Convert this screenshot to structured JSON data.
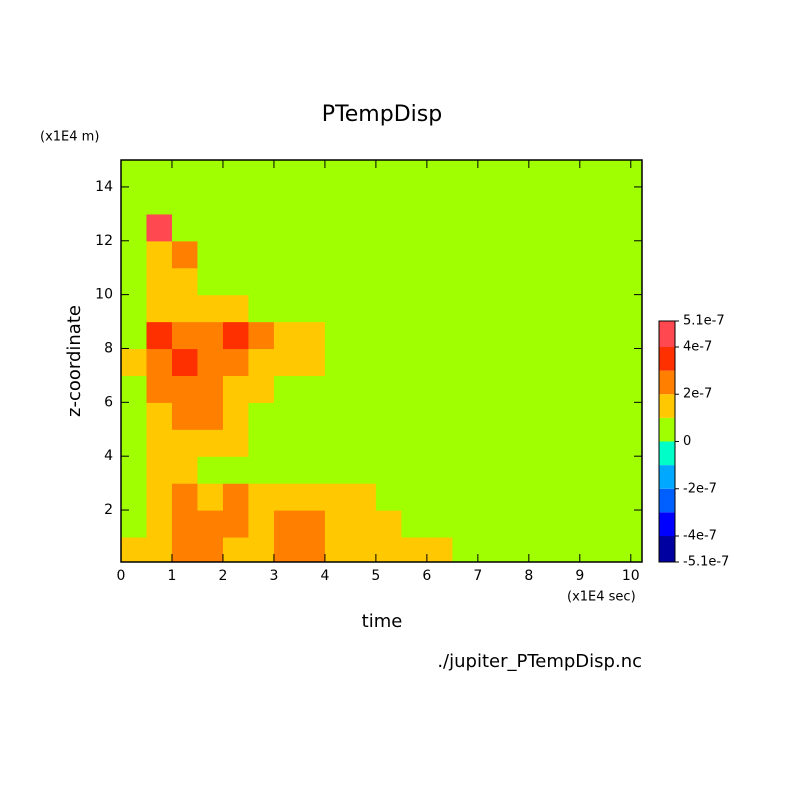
{
  "chart_data": {
    "type": "contour",
    "title": "PTempDisp",
    "x_label": "time",
    "y_label": "z-coordinate",
    "x_unit": "(x1E4 sec)",
    "y_unit": "(x1E4 m)",
    "source": "./jupiter_PTempDisp.nc",
    "xlim": [
      0,
      10.22
    ],
    "ylim": [
      0.07,
      15.0
    ],
    "xticks": [
      0,
      1,
      2,
      3,
      4,
      5,
      6,
      7,
      8,
      9,
      10
    ],
    "yticks": [
      2,
      4,
      6,
      8,
      10,
      12,
      14
    ],
    "x": [
      0.25,
      0.75,
      1.25,
      1.75,
      2.25,
      2.75,
      3.25,
      3.75,
      4.25,
      4.75,
      5.25,
      5.75,
      6.25,
      6.75,
      7.25,
      7.75,
      8.25,
      8.75,
      9.25,
      9.75,
      10.25
    ],
    "y": [
      0.5,
      1.5,
      2.5,
      3.5,
      4.5,
      5.5,
      6.5,
      7.5,
      8.5,
      9.5,
      10.5,
      11.5,
      12.5,
      13.5,
      14.5
    ],
    "z": [
      [
        1.5e-07,
        1.5e-07,
        2.5e-07,
        2.5e-07,
        1.5e-07,
        1.5e-07,
        2.5e-07,
        2.5e-07,
        1.5e-07,
        1.5e-07,
        1.5e-07,
        1.5e-07,
        1.5e-07,
        5e-08,
        5e-08,
        5e-08,
        5e-08,
        5e-08,
        5e-08,
        5e-08,
        5e-08
      ],
      [
        5e-08,
        1.5e-07,
        2.5e-07,
        2.5e-07,
        2.5e-07,
        1.5e-07,
        2.5e-07,
        2.5e-07,
        1.5e-07,
        1.5e-07,
        1.5e-07,
        5e-08,
        5e-08,
        5e-08,
        5e-08,
        5e-08,
        5e-08,
        5e-08,
        5e-08,
        5e-08,
        5e-08
      ],
      [
        5e-08,
        1.5e-07,
        2.5e-07,
        1.5e-07,
        2.5e-07,
        1.5e-07,
        1.5e-07,
        1.5e-07,
        1.5e-07,
        1.5e-07,
        5e-08,
        5e-08,
        5e-08,
        5e-08,
        5e-08,
        5e-08,
        5e-08,
        5e-08,
        5e-08,
        5e-08,
        5e-08
      ],
      [
        5e-08,
        1.5e-07,
        1.5e-07,
        5e-08,
        5e-08,
        5e-08,
        5e-08,
        5e-08,
        5e-08,
        5e-08,
        5e-08,
        5e-08,
        5e-08,
        5e-08,
        5e-08,
        5e-08,
        5e-08,
        5e-08,
        5e-08,
        5e-08,
        5e-08
      ],
      [
        5e-08,
        1.5e-07,
        1.5e-07,
        1.5e-07,
        1.5e-07,
        5e-08,
        5e-08,
        5e-08,
        5e-08,
        5e-08,
        5e-08,
        5e-08,
        5e-08,
        5e-08,
        5e-08,
        5e-08,
        5e-08,
        5e-08,
        5e-08,
        5e-08,
        5e-08
      ],
      [
        5e-08,
        1.5e-07,
        2.5e-07,
        2.5e-07,
        1.5e-07,
        5e-08,
        5e-08,
        5e-08,
        5e-08,
        5e-08,
        5e-08,
        5e-08,
        5e-08,
        5e-08,
        5e-08,
        5e-08,
        5e-08,
        5e-08,
        5e-08,
        5e-08,
        5e-08
      ],
      [
        5e-08,
        2.5e-07,
        2.5e-07,
        2.5e-07,
        1.5e-07,
        1.5e-07,
        5e-08,
        5e-08,
        5e-08,
        5e-08,
        5e-08,
        5e-08,
        5e-08,
        5e-08,
        5e-08,
        5e-08,
        5e-08,
        5e-08,
        5e-08,
        5e-08,
        5e-08
      ],
      [
        1.5e-07,
        2.5e-07,
        3.5e-07,
        2.5e-07,
        2.5e-07,
        1.5e-07,
        1.5e-07,
        1.5e-07,
        5e-08,
        5e-08,
        5e-08,
        5e-08,
        5e-08,
        5e-08,
        5e-08,
        5e-08,
        5e-08,
        5e-08,
        5e-08,
        5e-08,
        5e-08
      ],
      [
        5e-08,
        3.5e-07,
        2.5e-07,
        2.5e-07,
        3.5e-07,
        2.5e-07,
        1.5e-07,
        1.5e-07,
        5e-08,
        5e-08,
        5e-08,
        5e-08,
        5e-08,
        5e-08,
        5e-08,
        5e-08,
        5e-08,
        5e-08,
        5e-08,
        5e-08,
        5e-08
      ],
      [
        5e-08,
        1.5e-07,
        1.5e-07,
        1.5e-07,
        1.5e-07,
        5e-08,
        5e-08,
        5e-08,
        5e-08,
        5e-08,
        5e-08,
        5e-08,
        5e-08,
        5e-08,
        5e-08,
        5e-08,
        5e-08,
        5e-08,
        5e-08,
        5e-08,
        5e-08
      ],
      [
        5e-08,
        1.5e-07,
        1.5e-07,
        5e-08,
        5e-08,
        5e-08,
        5e-08,
        5e-08,
        5e-08,
        5e-08,
        5e-08,
        5e-08,
        5e-08,
        5e-08,
        5e-08,
        5e-08,
        5e-08,
        5e-08,
        5e-08,
        5e-08,
        5e-08
      ],
      [
        5e-08,
        1.5e-07,
        2.5e-07,
        5e-08,
        5e-08,
        5e-08,
        5e-08,
        5e-08,
        5e-08,
        5e-08,
        5e-08,
        5e-08,
        5e-08,
        5e-08,
        5e-08,
        5e-08,
        5e-08,
        5e-08,
        5e-08,
        5e-08,
        5e-08
      ],
      [
        5e-08,
        4.5e-07,
        5e-08,
        5e-08,
        5e-08,
        5e-08,
        5e-08,
        5e-08,
        5e-08,
        5e-08,
        5e-08,
        5e-08,
        5e-08,
        5e-08,
        5e-08,
        5e-08,
        5e-08,
        5e-08,
        5e-08,
        5e-08,
        5e-08
      ],
      [
        5e-08,
        5e-08,
        5e-08,
        5e-08,
        5e-08,
        5e-08,
        5e-08,
        5e-08,
        5e-08,
        5e-08,
        5e-08,
        5e-08,
        5e-08,
        5e-08,
        5e-08,
        5e-08,
        5e-08,
        5e-08,
        5e-08,
        5e-08,
        5e-08
      ],
      [
        5e-08,
        5e-08,
        5e-08,
        5e-08,
        5e-08,
        5e-08,
        5e-08,
        5e-08,
        5e-08,
        5e-08,
        5e-08,
        5e-08,
        5e-08,
        5e-08,
        5e-08,
        5e-08,
        5e-08,
        5e-08,
        5e-08,
        5e-08,
        5e-08
      ]
    ],
    "levels": [
      -5.1e-07,
      -4e-07,
      -3e-07,
      -2e-07,
      -1e-07,
      0,
      1e-07,
      2e-07,
      3e-07,
      4e-07,
      5.1e-07
    ],
    "colors": [
      "#0000a0",
      "#0000ff",
      "#0060ff",
      "#00a8ff",
      "#00ffc8",
      "#a0ff00",
      "#ffc800",
      "#ff8000",
      "#ff3000",
      "#ff4850"
    ],
    "colorbar_ticks": [
      -5.1e-07,
      -4e-07,
      -2e-07,
      0,
      2e-07,
      4e-07,
      5.1e-07
    ]
  }
}
